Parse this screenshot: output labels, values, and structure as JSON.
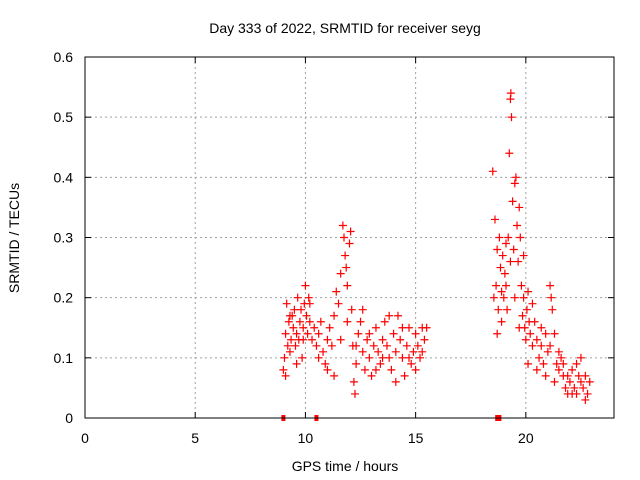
{
  "chart_data": {
    "type": "scatter",
    "title": "Day 333 of 2022, SRMTID for receiver seyg",
    "xlabel": "GPS time / hours",
    "ylabel": "SRMTID / TECUs",
    "xlim": [
      0,
      24
    ],
    "ylim": [
      0,
      0.6
    ],
    "x_ticks": [
      0,
      5,
      10,
      15,
      20
    ],
    "x_tick_labels": [
      "0",
      "5",
      "10",
      "15",
      "20"
    ],
    "y_ticks": [
      0,
      0.1,
      0.2,
      0.3,
      0.4,
      0.5,
      0.6
    ],
    "y_tick_labels": [
      "0",
      "0.1",
      "0.2",
      "0.3",
      "0.4",
      "0.5",
      "0.6"
    ],
    "grid": true,
    "marker": "plus",
    "color": "#ff0000",
    "zero_markers_x": [
      9.0,
      10.5,
      18.7,
      18.8
    ],
    "series": [
      {
        "name": "SRMTID",
        "points": [
          [
            9.0,
            0.08
          ],
          [
            9.05,
            0.1
          ],
          [
            9.1,
            0.14
          ],
          [
            9.15,
            0.19
          ],
          [
            9.2,
            0.12
          ],
          [
            9.25,
            0.16
          ],
          [
            9.3,
            0.11
          ],
          [
            9.35,
            0.13
          ],
          [
            9.4,
            0.17
          ],
          [
            9.45,
            0.15
          ],
          [
            9.5,
            0.18
          ],
          [
            9.55,
            0.12
          ],
          [
            9.6,
            0.14
          ],
          [
            9.65,
            0.2
          ],
          [
            9.7,
            0.13
          ],
          [
            9.75,
            0.16
          ],
          [
            9.8,
            0.18
          ],
          [
            9.85,
            0.1
          ],
          [
            9.9,
            0.15
          ],
          [
            9.95,
            0.19
          ],
          [
            10.0,
            0.22
          ],
          [
            10.05,
            0.17
          ],
          [
            10.1,
            0.14
          ],
          [
            10.15,
            0.2
          ],
          [
            10.2,
            0.16
          ],
          [
            10.3,
            0.13
          ],
          [
            10.4,
            0.15
          ],
          [
            10.5,
            0.12
          ],
          [
            10.6,
            0.14
          ],
          [
            10.7,
            0.16
          ],
          [
            10.8,
            0.11
          ],
          [
            10.9,
            0.09
          ],
          [
            11.0,
            0.13
          ],
          [
            11.1,
            0.15
          ],
          [
            11.2,
            0.12
          ],
          [
            11.3,
            0.17
          ],
          [
            11.4,
            0.21
          ],
          [
            11.5,
            0.19
          ],
          [
            11.6,
            0.24
          ],
          [
            11.7,
            0.32
          ],
          [
            11.75,
            0.3
          ],
          [
            11.8,
            0.27
          ],
          [
            11.85,
            0.25
          ],
          [
            11.9,
            0.22
          ],
          [
            12.0,
            0.29
          ],
          [
            12.05,
            0.31
          ],
          [
            12.1,
            0.18
          ],
          [
            12.15,
            0.12
          ],
          [
            12.2,
            0.06
          ],
          [
            12.25,
            0.04
          ],
          [
            12.3,
            0.09
          ],
          [
            12.4,
            0.14
          ],
          [
            12.5,
            0.16
          ],
          [
            12.6,
            0.11
          ],
          [
            12.7,
            0.08
          ],
          [
            12.8,
            0.13
          ],
          [
            12.9,
            0.1
          ],
          [
            13.0,
            0.07
          ],
          [
            13.1,
            0.12
          ],
          [
            13.2,
            0.15
          ],
          [
            13.3,
            0.11
          ],
          [
            13.4,
            0.09
          ],
          [
            13.5,
            0.13
          ],
          [
            13.6,
            0.16
          ],
          [
            13.7,
            0.12
          ],
          [
            13.8,
            0.1
          ],
          [
            13.9,
            0.08
          ],
          [
            14.0,
            0.14
          ],
          [
            14.1,
            0.11
          ],
          [
            14.2,
            0.17
          ],
          [
            14.3,
            0.13
          ],
          [
            14.4,
            0.1
          ],
          [
            14.5,
            0.07
          ],
          [
            14.6,
            0.12
          ],
          [
            14.7,
            0.15
          ],
          [
            14.8,
            0.09
          ],
          [
            14.9,
            0.11
          ],
          [
            15.0,
            0.14
          ],
          [
            15.1,
            0.12
          ],
          [
            15.2,
            0.1
          ],
          [
            15.3,
            0.15
          ],
          [
            15.4,
            0.13
          ],
          [
            15.5,
            0.15
          ],
          [
            9.1,
            0.07
          ],
          [
            9.3,
            0.17
          ],
          [
            9.6,
            0.09
          ],
          [
            9.9,
            0.13
          ],
          [
            10.2,
            0.19
          ],
          [
            10.6,
            0.1
          ],
          [
            11.0,
            0.08
          ],
          [
            11.3,
            0.07
          ],
          [
            11.6,
            0.13
          ],
          [
            11.9,
            0.16
          ],
          [
            12.3,
            0.12
          ],
          [
            12.6,
            0.18
          ],
          [
            12.9,
            0.14
          ],
          [
            13.2,
            0.08
          ],
          [
            13.5,
            0.1
          ],
          [
            13.8,
            0.17
          ],
          [
            14.1,
            0.06
          ],
          [
            14.4,
            0.15
          ],
          [
            14.7,
            0.1
          ],
          [
            15.0,
            0.08
          ],
          [
            15.3,
            0.11
          ],
          [
            18.5,
            0.41
          ],
          [
            18.55,
            0.2
          ],
          [
            18.6,
            0.33
          ],
          [
            18.65,
            0.22
          ],
          [
            18.7,
            0.28
          ],
          [
            18.75,
            0.18
          ],
          [
            18.8,
            0.3
          ],
          [
            18.85,
            0.25
          ],
          [
            18.9,
            0.16
          ],
          [
            18.95,
            0.27
          ],
          [
            19.0,
            0.2
          ],
          [
            19.05,
            0.24
          ],
          [
            19.1,
            0.22
          ],
          [
            19.15,
            0.18
          ],
          [
            19.2,
            0.3
          ],
          [
            19.25,
            0.44
          ],
          [
            19.3,
            0.53
          ],
          [
            19.32,
            0.54
          ],
          [
            19.35,
            0.5
          ],
          [
            19.4,
            0.36
          ],
          [
            19.45,
            0.28
          ],
          [
            19.5,
            0.39
          ],
          [
            19.55,
            0.4
          ],
          [
            19.6,
            0.32
          ],
          [
            19.65,
            0.26
          ],
          [
            19.7,
            0.35
          ],
          [
            19.75,
            0.3
          ],
          [
            19.8,
            0.22
          ],
          [
            19.85,
            0.17
          ],
          [
            19.9,
            0.2
          ],
          [
            19.95,
            0.15
          ],
          [
            20.0,
            0.13
          ],
          [
            20.05,
            0.18
          ],
          [
            20.1,
            0.21
          ],
          [
            20.15,
            0.16
          ],
          [
            20.2,
            0.14
          ],
          [
            20.3,
            0.12
          ],
          [
            20.4,
            0.16
          ],
          [
            20.5,
            0.13
          ],
          [
            20.6,
            0.1
          ],
          [
            20.7,
            0.12
          ],
          [
            20.8,
            0.09
          ],
          [
            20.9,
            0.14
          ],
          [
            21.0,
            0.11
          ],
          [
            21.1,
            0.22
          ],
          [
            21.15,
            0.2
          ],
          [
            21.2,
            0.18
          ],
          [
            21.3,
            0.14
          ],
          [
            21.4,
            0.09
          ],
          [
            21.5,
            0.08
          ],
          [
            21.6,
            0.1
          ],
          [
            21.7,
            0.07
          ],
          [
            21.8,
            0.05
          ],
          [
            21.9,
            0.04
          ],
          [
            22.0,
            0.06
          ],
          [
            22.1,
            0.08
          ],
          [
            22.2,
            0.05
          ],
          [
            22.3,
            0.04
          ],
          [
            22.4,
            0.07
          ],
          [
            22.5,
            0.1
          ],
          [
            22.6,
            0.05
          ],
          [
            22.7,
            0.03
          ],
          [
            22.8,
            0.04
          ],
          [
            22.9,
            0.06
          ],
          [
            18.7,
            0.14
          ],
          [
            18.9,
            0.21
          ],
          [
            19.1,
            0.29
          ],
          [
            19.3,
            0.26
          ],
          [
            19.5,
            0.2
          ],
          [
            19.7,
            0.15
          ],
          [
            19.9,
            0.27
          ],
          [
            20.1,
            0.09
          ],
          [
            20.3,
            0.19
          ],
          [
            20.5,
            0.08
          ],
          [
            20.7,
            0.15
          ],
          [
            20.9,
            0.07
          ],
          [
            21.1,
            0.12
          ],
          [
            21.3,
            0.06
          ],
          [
            21.5,
            0.11
          ],
          [
            21.7,
            0.09
          ],
          [
            21.9,
            0.07
          ],
          [
            22.1,
            0.04
          ],
          [
            22.3,
            0.09
          ],
          [
            22.5,
            0.06
          ],
          [
            22.7,
            0.07
          ]
        ]
      }
    ]
  }
}
